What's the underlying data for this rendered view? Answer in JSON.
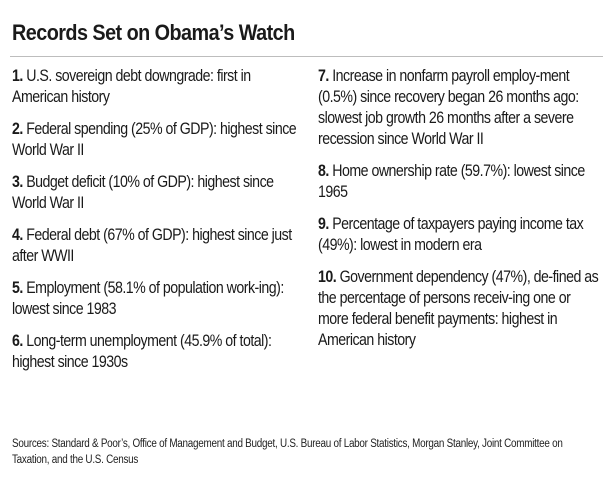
{
  "title": "Records Set on Obama’s Watch",
  "items_left": [
    {
      "num": "1.",
      "text": "U.S. sovereign debt downgrade: first in American history"
    },
    {
      "num": "2.",
      "text": "Federal spending (25% of GDP): highest since World War II"
    },
    {
      "num": "3.",
      "text": "Budget deficit (10% of GDP): highest since World War II"
    },
    {
      "num": "4.",
      "text": "Federal debt (67% of GDP): highest since just after WWII"
    },
    {
      "num": "5.",
      "text": "Employment (58.1% of population work-ing): lowest since 1983"
    },
    {
      "num": "6.",
      "text": "Long-term unemployment (45.9% of total): highest since 1930s"
    }
  ],
  "items_right": [
    {
      "num": "7.",
      "text": "Increase in nonfarm payroll employ-ment (0.5%) since recovery began 26 months ago: slowest job growth 26 months after a severe recession since World War II"
    },
    {
      "num": "8.",
      "text": "Home ownership rate (59.7%): lowest since 1965"
    },
    {
      "num": "9.",
      "text": "Percentage of taxpayers paying income tax (49%): lowest in modern era"
    },
    {
      "num": "10.",
      "text": "Government dependency (47%), de-fined as the percentage of persons receiv-ing one or more federal benefit payments: highest in American history"
    }
  ],
  "sources": "Sources: Standard & Poor’s, Office of Management and Budget, U.S. Bureau of Labor Statistics, Morgan Stanley, Joint Committee on Taxation, and the U.S. Census"
}
